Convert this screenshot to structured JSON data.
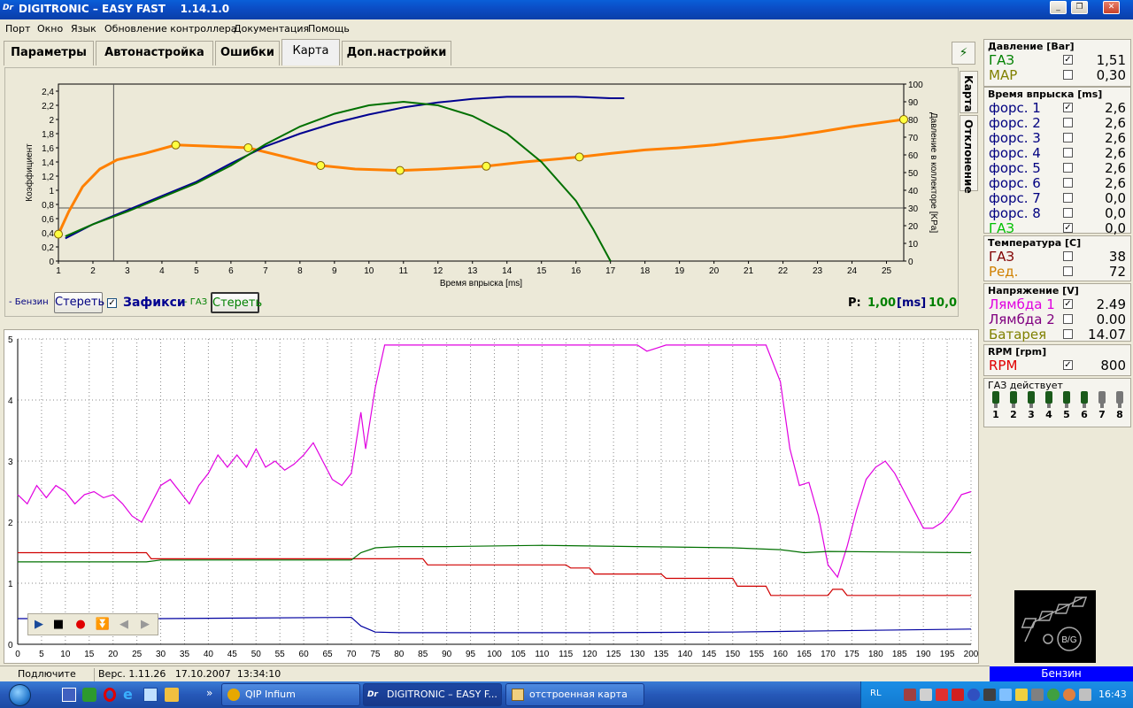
{
  "window": {
    "title": "DIGITRONIC – EASY FAST    1.14.1.0",
    "icon": "Dr"
  },
  "menu": [
    "Порт",
    "Окно",
    "Язык",
    "Обновление контроллера",
    "Документация",
    "Помощь"
  ],
  "tabs": [
    "Параметры",
    "Автонастройка",
    "Ошибки",
    "Карта",
    "Доп.настройки"
  ],
  "active_tab": "Карта",
  "side_tabs": [
    "Карта",
    "Отклонение"
  ],
  "map_chart": {
    "ylabel_left": "Коэффициент",
    "ylabel_right": "Давление в коллекторе [KPa]",
    "xlabel": "Время впрыска [ms]"
  },
  "controls": {
    "benzin_label": "- Бензин",
    "clear_label": "Стереть",
    "fix_label": "Зафикси",
    "gas_label": "- ГАЗ",
    "clear2_label": "Стереть",
    "p_label": "P:",
    "p_value": "1,00",
    "p_unit": "[ms]",
    "p_value2": "10,0"
  },
  "right_panel": {
    "pressure": {
      "title": "Давление [Bar]",
      "rows": [
        {
          "label": "ГАЗ",
          "checked": "✓",
          "value": "1,51",
          "color": "#008000"
        },
        {
          "label": "MAP",
          "checked": "",
          "value": "0,30",
          "color": "#808000"
        }
      ]
    },
    "injection": {
      "title": "Время впрыска [ms]",
      "rows": [
        {
          "label": "форс. 1",
          "checked": "✓",
          "value": "2,6",
          "color": "#000080"
        },
        {
          "label": "форс. 2",
          "checked": "",
          "value": "2,6",
          "color": "#000080"
        },
        {
          "label": "форс. 3",
          "checked": "",
          "value": "2,6",
          "color": "#000080"
        },
        {
          "label": "форс. 4",
          "checked": "",
          "value": "2,6",
          "color": "#000080"
        },
        {
          "label": "форс. 5",
          "checked": "",
          "value": "2,6",
          "color": "#000080"
        },
        {
          "label": "форс. 6",
          "checked": "",
          "value": "2,6",
          "color": "#000080"
        },
        {
          "label": "форс. 7",
          "checked": "",
          "value": "0,0",
          "color": "#000080"
        },
        {
          "label": "форс. 8",
          "checked": "",
          "value": "0,0",
          "color": "#000080"
        },
        {
          "label": "ГАЗ",
          "checked": "✓",
          "value": "0,0",
          "color": "#00c000"
        }
      ]
    },
    "temperature": {
      "title": "Температура [C]",
      "rows": [
        {
          "label": "ГАЗ",
          "checked": "",
          "value": "38",
          "color": "#800000"
        },
        {
          "label": "Ред.",
          "checked": "",
          "value": "72",
          "color": "#d08000"
        }
      ]
    },
    "voltage": {
      "title": "Напряжение [V]",
      "rows": [
        {
          "label": "Лямбда 1",
          "checked": "✓",
          "value": "2.49",
          "color": "#e000e0"
        },
        {
          "label": "Лямбда 2",
          "checked": "",
          "value": "0.00",
          "color": "#800080"
        },
        {
          "label": "Батарея",
          "checked": "",
          "value": "14.07",
          "color": "#808000"
        }
      ]
    },
    "rpm": {
      "title": "RPM [rpm]",
      "rows": [
        {
          "label": "RPM",
          "checked": "✓",
          "value": "800",
          "color": "#e00000"
        }
      ]
    },
    "gas_active": {
      "title": "ГАЗ действует",
      "injectors": [
        "1",
        "2",
        "3",
        "4",
        "5",
        "6",
        "7",
        "8"
      ]
    }
  },
  "logo_text": "B/G",
  "mode_indicator": "Бензин",
  "status": {
    "connect": "Подлючите",
    "version": "Верс. 1.11.26   17.10.2007  13:34:10"
  },
  "taskbar": {
    "tasks": [
      "QIP Infium",
      "DIGITRONIC – EASY F...",
      "отстроенная карта д..."
    ],
    "lang": "RL",
    "clock": "16:43"
  },
  "chart_data": [
    {
      "type": "line",
      "title": "",
      "xlabel": "Время впрыска [ms]",
      "ylabel": "Коэффициент",
      "y2label": "Давление в коллекторе [KPa]",
      "xlim": [
        1,
        25.5
      ],
      "ylim": [
        0,
        2.5
      ],
      "y2lim": [
        0,
        100
      ],
      "x_ticks": [
        1,
        2,
        3,
        4,
        5,
        6,
        7,
        8,
        9,
        10,
        11,
        12,
        13,
        14,
        15,
        16,
        17,
        18,
        19,
        20,
        21,
        22,
        23,
        24,
        25
      ],
      "y_ticks": [
        "0",
        "0,2",
        "0,4",
        "0,6",
        "0,8",
        "1",
        "1,2",
        "1,4",
        "1,6",
        "1,8",
        "2",
        "2,2",
        "2,4"
      ],
      "y2_ticks": [
        0,
        10,
        20,
        30,
        40,
        50,
        60,
        70,
        80,
        90,
        100
      ],
      "series": [
        {
          "color": "#ff8000",
          "x": [
            1,
            1.3,
            1.7,
            2.2,
            2.7,
            3.5,
            4.4,
            5.5,
            6.5,
            7.5,
            8.6,
            9.6,
            10.9,
            12,
            13.4,
            14.5,
            16.1,
            17,
            18,
            19,
            20,
            21,
            22,
            23,
            24,
            25.5
          ],
          "y": [
            0.38,
            0.7,
            1.05,
            1.3,
            1.43,
            1.52,
            1.64,
            1.62,
            1.6,
            1.48,
            1.35,
            1.3,
            1.28,
            1.3,
            1.34,
            1.4,
            1.47,
            1.52,
            1.57,
            1.6,
            1.64,
            1.7,
            1.75,
            1.82,
            1.9,
            2.0
          ]
        },
        {
          "color": "#000090",
          "x": [
            1.2,
            2,
            3,
            4,
            5,
            6,
            7,
            8,
            9,
            10,
            11,
            12,
            13,
            14,
            15,
            16,
            17,
            17.4
          ],
          "y": [
            0.32,
            0.52,
            0.72,
            0.92,
            1.12,
            1.38,
            1.62,
            1.8,
            1.95,
            2.07,
            2.17,
            2.24,
            2.29,
            2.32,
            2.32,
            2.32,
            2.3,
            2.3
          ]
        },
        {
          "color": "#007000",
          "x": [
            1.2,
            2,
            3,
            4,
            5,
            6,
            7,
            8,
            9,
            10,
            11,
            12,
            13,
            14,
            15,
            16,
            16.5,
            17
          ],
          "y": [
            0.35,
            0.52,
            0.7,
            0.9,
            1.1,
            1.35,
            1.65,
            1.9,
            2.08,
            2.2,
            2.25,
            2.2,
            2.05,
            1.8,
            1.4,
            0.85,
            0.45,
            0.0
          ]
        }
      ],
      "markers": {
        "x": [
          1,
          4.4,
          6.5,
          8.6,
          10.9,
          13.4,
          16.1,
          25.5
        ],
        "y": [
          0.38,
          1.64,
          1.6,
          1.35,
          1.28,
          1.34,
          1.47,
          2.0
        ]
      },
      "cursor_x": 2.6,
      "ref_y": 0.75
    },
    {
      "type": "line",
      "title": "",
      "xlim": [
        0,
        200
      ],
      "ylim": [
        0,
        5
      ],
      "x_ticks": [
        0,
        5,
        10,
        15,
        20,
        25,
        30,
        35,
        40,
        45,
        50,
        55,
        60,
        65,
        70,
        75,
        80,
        85,
        90,
        95,
        100,
        105,
        110,
        115,
        120,
        125,
        130,
        135,
        140,
        145,
        150,
        155,
        160,
        165,
        170,
        175,
        180,
        185,
        190,
        195,
        200
      ],
      "y_ticks": [
        0,
        1,
        2,
        3,
        4,
        5
      ],
      "grid": true,
      "series": [
        {
          "color": "#e000e0",
          "x": [
            0,
            2,
            4,
            6,
            8,
            10,
            12,
            14,
            16,
            18,
            20,
            22,
            24,
            26,
            28,
            30,
            32,
            34,
            36,
            38,
            40,
            42,
            44,
            46,
            48,
            50,
            52,
            54,
            56,
            58,
            60,
            62,
            64,
            66,
            68,
            70,
            72,
            73,
            75,
            77,
            78,
            80,
            90,
            100,
            110,
            120,
            130,
            132,
            134,
            136,
            140,
            150,
            157,
            160,
            162,
            164,
            166,
            168,
            170,
            172,
            174,
            176,
            178,
            180,
            182,
            184,
            186,
            188,
            190,
            192,
            194,
            196,
            198,
            200
          ],
          "y": [
            2.45,
            2.3,
            2.6,
            2.4,
            2.6,
            2.5,
            2.3,
            2.45,
            2.5,
            2.4,
            2.45,
            2.3,
            2.1,
            2.0,
            2.3,
            2.6,
            2.7,
            2.5,
            2.3,
            2.6,
            2.8,
            3.1,
            2.9,
            3.1,
            2.9,
            3.2,
            2.9,
            3.0,
            2.85,
            2.95,
            3.1,
            3.3,
            3.0,
            2.7,
            2.6,
            2.8,
            3.8,
            3.2,
            4.2,
            4.9,
            4.9,
            4.9,
            4.9,
            4.9,
            4.9,
            4.9,
            4.9,
            4.8,
            4.85,
            4.9,
            4.9,
            4.9,
            4.9,
            4.3,
            3.2,
            2.6,
            2.65,
            2.1,
            1.3,
            1.1,
            1.6,
            2.2,
            2.7,
            2.9,
            3.0,
            2.8,
            2.5,
            2.2,
            1.9,
            1.9,
            2.0,
            2.2,
            2.45,
            2.5
          ]
        },
        {
          "color": "#d00000",
          "x": [
            0,
            27,
            28,
            70,
            71,
            85,
            86,
            115,
            116,
            120,
            121,
            135,
            136,
            150,
            151,
            157,
            158,
            170,
            171,
            173,
            174,
            200
          ],
          "y": [
            1.5,
            1.5,
            1.4,
            1.4,
            1.4,
            1.4,
            1.3,
            1.3,
            1.25,
            1.25,
            1.15,
            1.15,
            1.08,
            1.08,
            0.95,
            0.95,
            0.8,
            0.8,
            0.9,
            0.9,
            0.8,
            0.8
          ]
        },
        {
          "color": "#007000",
          "x": [
            0,
            27,
            30,
            70,
            72,
            75,
            80,
            90,
            110,
            130,
            150,
            160,
            165,
            170,
            200
          ],
          "y": [
            1.35,
            1.35,
            1.38,
            1.38,
            1.5,
            1.58,
            1.6,
            1.6,
            1.62,
            1.6,
            1.58,
            1.55,
            1.5,
            1.52,
            1.5
          ]
        },
        {
          "color": "#0000a0",
          "x": [
            0,
            27,
            30,
            70,
            72,
            75,
            80,
            120,
            150,
            160,
            170,
            200
          ],
          "y": [
            0.42,
            0.42,
            0.42,
            0.44,
            0.3,
            0.2,
            0.19,
            0.19,
            0.2,
            0.21,
            0.22,
            0.25
          ]
        }
      ]
    }
  ]
}
